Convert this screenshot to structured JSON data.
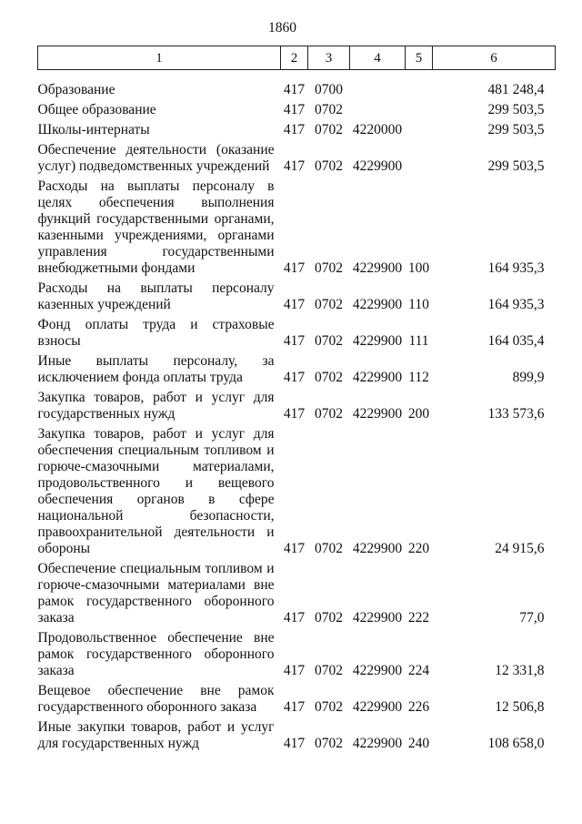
{
  "page_number": "1860",
  "table": {
    "header": [
      "1",
      "2",
      "3",
      "4",
      "5",
      "6"
    ],
    "rows": [
      [
        "Образование",
        "417",
        "0700",
        "",
        "",
        "481 248,4"
      ],
      [
        "Общее образование",
        "417",
        "0702",
        "",
        "",
        "299 503,5"
      ],
      [
        "Школы-интернаты",
        "417",
        "0702",
        "4220000",
        "",
        "299 503,5"
      ],
      [
        "Обеспечение деятельности (оказание услуг) подведомственных учреждений",
        "417",
        "0702",
        "4229900",
        "",
        "299 503,5"
      ],
      [
        "Расходы на выплаты персоналу в целях обеспечения выполнения функций государственными органами, казенными учреждениями, органами управления государственными внебюджетными фондами",
        "417",
        "0702",
        "4229900",
        "100",
        "164 935,3"
      ],
      [
        "Расходы на выплаты персоналу казенных учреждений",
        "417",
        "0702",
        "4229900",
        "110",
        "164 935,3"
      ],
      [
        "Фонд оплаты труда и страховые взносы",
        "417",
        "0702",
        "4229900",
        "111",
        "164 035,4"
      ],
      [
        "Иные выплаты персоналу, за исключением фонда оплаты труда",
        "417",
        "0702",
        "4229900",
        "112",
        "899,9"
      ],
      [
        "Закупка товаров, работ и услуг для государственных нужд",
        "417",
        "0702",
        "4229900",
        "200",
        "133 573,6"
      ],
      [
        "Закупка товаров, работ и услуг для обеспечения специальным топливом и горюче-смазочными материалами, продовольственного и вещевого обеспечения органов в сфере национальной безопасности, правоохранительной деятельности и обороны",
        "417",
        "0702",
        "4229900",
        "220",
        "24 915,6"
      ],
      [
        "Обеспечение специальным топливом и горюче-смазочными материалами вне рамок государственного оборонного заказа",
        "417",
        "0702",
        "4229900",
        "222",
        "77,0"
      ],
      [
        "Продовольственное обеспечение вне рамок государственного оборонного заказа",
        "417",
        "0702",
        "4229900",
        "224",
        "12 331,8"
      ],
      [
        "Вещевое обеспечение вне рамок государственного оборонного заказа",
        "417",
        "0702",
        "4229900",
        "226",
        "12 506,8"
      ],
      [
        "Иные закупки товаров, работ и услуг для государственных нужд",
        "417",
        "0702",
        "4229900",
        "240",
        "108 658,0"
      ]
    ]
  }
}
